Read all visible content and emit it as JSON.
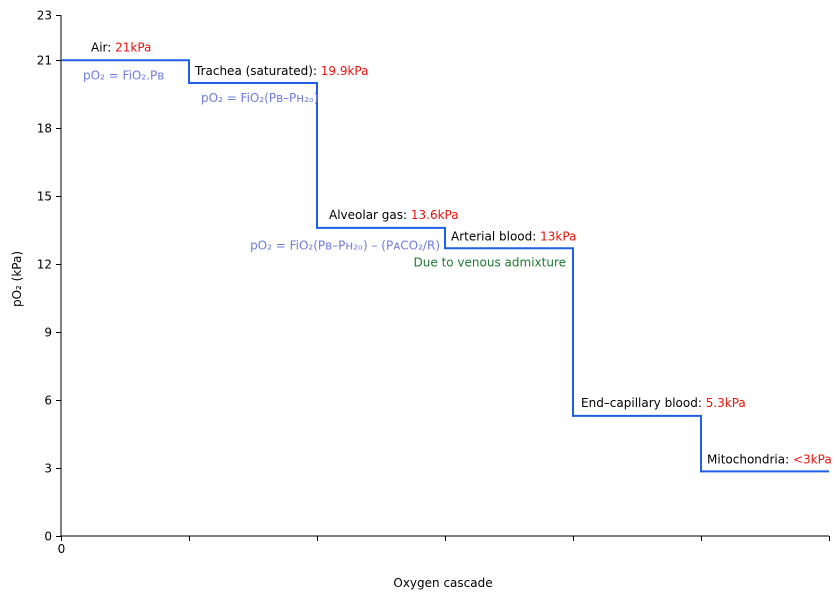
{
  "colors": {
    "line": "#1f5fe6",
    "label_black": "#000000",
    "value_red": "#e8140c",
    "formula_blue": "#6f7ce0",
    "note_green": "#1e7a32",
    "axis": "#000000"
  },
  "chart_data": {
    "type": "line",
    "step": true,
    "xlabel": "Oxygen cascade",
    "ylabel": "pO₂ (kPa)",
    "xlim": [
      0,
      6
    ],
    "ylim": [
      0,
      23
    ],
    "yticks": [
      0,
      3,
      6,
      9,
      12,
      15,
      18,
      21,
      23
    ],
    "xtick_labels": [
      "0",
      "",
      "",
      "",
      "",
      "",
      ""
    ],
    "grid": false,
    "series": [
      {
        "x": [
          0,
          1,
          1,
          2,
          2,
          3,
          3,
          4,
          4,
          5,
          5,
          6
        ],
        "y": [
          21,
          21,
          20,
          20,
          13.6,
          13.6,
          12.7,
          12.7,
          5.3,
          5.3,
          2.85,
          2.85
        ]
      }
    ],
    "annotations": [
      {
        "name": "Air: ",
        "value": "21kPa",
        "x": 0.5,
        "y": 21
      },
      {
        "name": "Trachea (saturated): ",
        "value": "19.9kPa",
        "x": 1.0,
        "y": 20
      },
      {
        "name": "Alveolar gas: ",
        "value": "13.6kPa",
        "x": 2.0,
        "y": 13.6
      },
      {
        "name": "Arterial blood: ",
        "value": "13kPa",
        "x": 3.0,
        "y": 12.7
      },
      {
        "name": "End–capillary blood: ",
        "value": "5.3kPa",
        "x": 4.0,
        "y": 5.3
      },
      {
        "name": "Mitochondria: ",
        "value": "<3kPa",
        "x": 5.0,
        "y": 2.85
      }
    ],
    "formulas": [
      "pO₂ = FiO₂.Pʙ",
      "pO₂ = FiO₂(Pʙ–Pʜ₂ₒ)",
      "pO₂ = FiO₂(Pʙ–Pʜ₂ₒ) – (PᴀCO₂/R)"
    ],
    "note": "Due to venous admixture"
  }
}
